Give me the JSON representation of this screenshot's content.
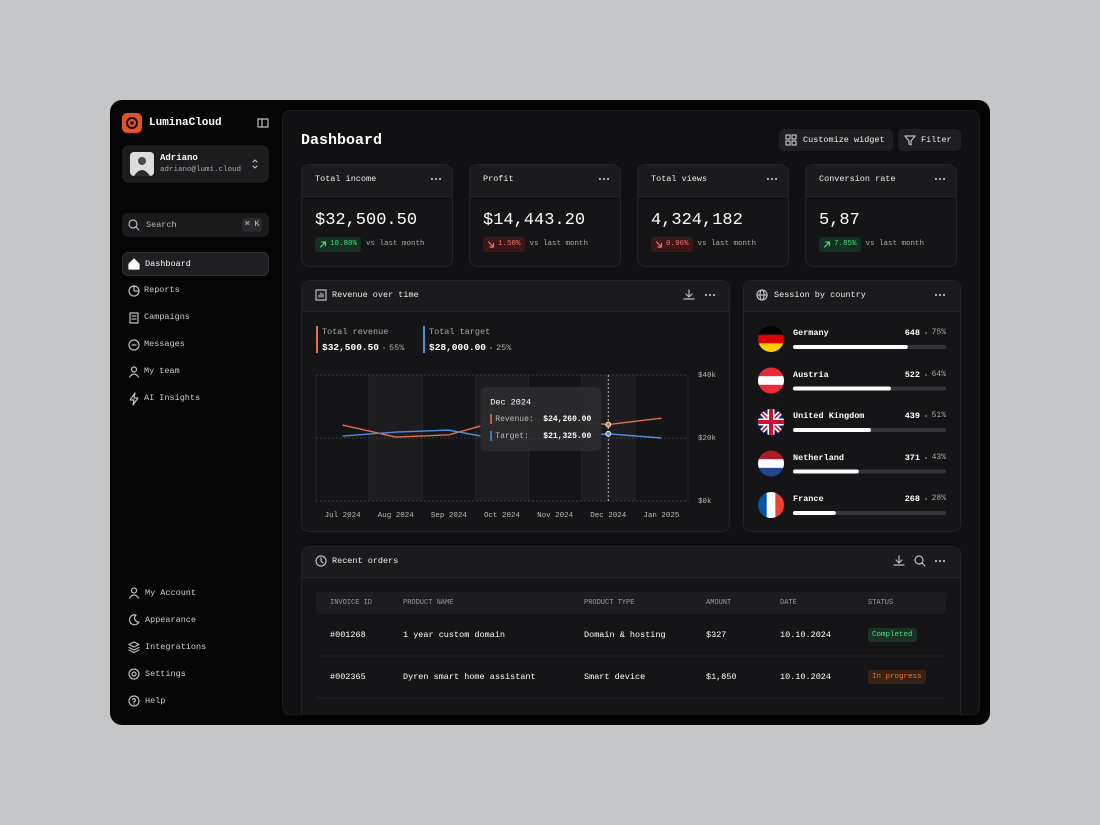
{
  "sidebar": {
    "brand": "LuminaCloud",
    "user": {
      "name": "Adriano",
      "email": "adriano@lumi.cloud"
    },
    "search": {
      "placeholder": "Search",
      "shortcut": "⌘ K"
    },
    "nav": [
      {
        "label": "Dashboard",
        "active": true
      },
      {
        "label": "Reports"
      },
      {
        "label": "Campaigns"
      },
      {
        "label": "Messages"
      },
      {
        "label": "My team"
      },
      {
        "label": "AI Insights"
      }
    ],
    "footer_nav": [
      "My Account",
      "Appearance",
      "Integrations",
      "Settings",
      "Help"
    ]
  },
  "header": {
    "title": "Dashboard",
    "actions": [
      "Customize widget",
      "Filter"
    ]
  },
  "stats": [
    {
      "title": "Total income",
      "value": "$32,500.50",
      "change": "10.80%",
      "trend": "up",
      "note": "vs last month"
    },
    {
      "title": "Profit",
      "value": "$14,443.20",
      "change": "1.50%",
      "trend": "down",
      "note": "vs last month"
    },
    {
      "title": "Total views",
      "value": "4,324,182",
      "change": "0.96%",
      "trend": "down",
      "note": "vs last month"
    },
    {
      "title": "Conversion rate",
      "value": "5,87",
      "change": "7.85%",
      "trend": "up",
      "note": "vs last month"
    }
  ],
  "chart_data": {
    "type": "line",
    "title": "Revenue over time",
    "categories": [
      "Jul 2024",
      "Aug 2024",
      "Sep 2024",
      "Oct 2024",
      "Nov 2024",
      "Dec 2024",
      "Jan 2025"
    ],
    "series": [
      {
        "name": "Total revenue",
        "color": "#e0704f",
        "total": "$32,500.50",
        "share": "55%",
        "values": [
          24100,
          20300,
          21000,
          25700,
          25700,
          24260,
          26300
        ]
      },
      {
        "name": "Total target",
        "color": "#4f8fd9",
        "total": "$28,000.00",
        "share": "25%",
        "values": [
          20600,
          21900,
          22500,
          19400,
          20000,
          21325,
          20000
        ]
      }
    ],
    "ylim": [
      0,
      40000
    ],
    "yticks": [
      {
        "value": 0,
        "label": "$0k"
      },
      {
        "value": 20000,
        "label": "$20k"
      },
      {
        "value": 40000,
        "label": "$40k"
      }
    ],
    "tooltip": {
      "title": "Dec 2024",
      "rows": [
        {
          "label": "Revenue:",
          "value": "$24,260.00"
        },
        {
          "label": "Target:",
          "value": "$21,325.00"
        }
      ]
    }
  },
  "sessions": {
    "title": "Session by country",
    "countries": [
      {
        "name": "Germany",
        "sessions": 648,
        "share": 75,
        "share_label": "75%"
      },
      {
        "name": "Austria",
        "sessions": 522,
        "share": 64,
        "share_label": "64%"
      },
      {
        "name": "United Kingdom",
        "sessions": 439,
        "share": 51,
        "share_label": "51%"
      },
      {
        "name": "Netherland",
        "sessions": 371,
        "share": 43,
        "share_label": "43%"
      },
      {
        "name": "France",
        "sessions": 268,
        "share": 28,
        "share_label": "28%"
      }
    ]
  },
  "orders": {
    "title": "Recent orders",
    "columns": [
      "INVOICE ID",
      "PRODUCT NAME",
      "PRODUCT TYPE",
      "AMOUNT",
      "DATE",
      "STATUS"
    ],
    "rows": [
      {
        "cells": [
          "#001268",
          "1 year custom domain",
          "Domain & hosting",
          "$327",
          "10.10.2024",
          "Completed"
        ],
        "status_color": "#4ade80"
      },
      {
        "cells": [
          "#002365",
          "Dyren smart home assistant",
          "Smart device",
          "$1,850",
          "10.10.2024",
          "In progress"
        ],
        "status_color": "#f97316"
      }
    ]
  }
}
